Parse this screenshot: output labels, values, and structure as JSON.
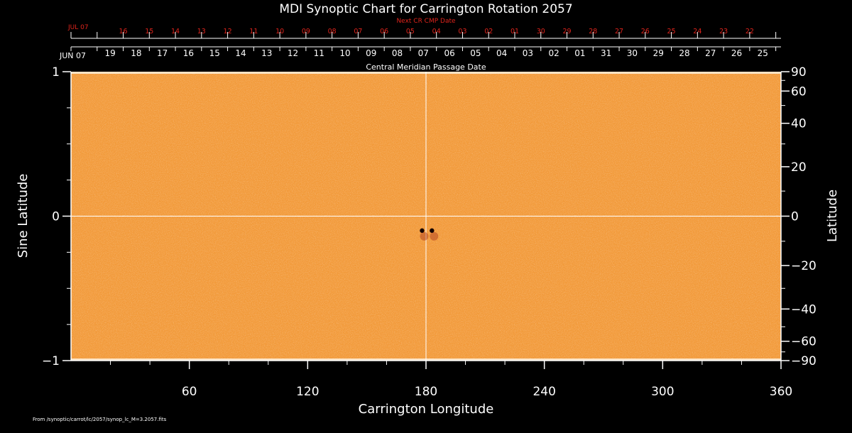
{
  "chart_data": {
    "type": "heatmap",
    "title": "MDI Synoptic Chart for Carrington Rotation 2057",
    "xlabel": "Carrington Longitude",
    "ylabel_left": "Sine Latitude",
    "ylabel_right": "Latitude",
    "xlim": [
      0,
      360
    ],
    "ylim": [
      -1,
      1
    ],
    "x_ticks": [
      60,
      120,
      180,
      240,
      300,
      360
    ],
    "y_ticks_left": [
      "1",
      "0",
      "−1"
    ],
    "y_ticks_right": [
      "90",
      "60",
      "40",
      "20",
      "0",
      "−20",
      "−40",
      "−60",
      "−90"
    ],
    "cmp_axis_label": "Central Meridian Passage Date",
    "cmp_month_label": "JUN 07",
    "cmp_dates": [
      "19",
      "18",
      "17",
      "16",
      "15",
      "14",
      "13",
      "12",
      "11",
      "10",
      "09",
      "08",
      "07",
      "06",
      "05",
      "04",
      "03",
      "02",
      "01",
      "31",
      "30",
      "29",
      "28",
      "27",
      "26",
      "25"
    ],
    "next_cr_label": "Next CR CMP Date",
    "next_cr_month_label": "JUL 07",
    "next_cr_dates": [
      "16",
      "15",
      "14",
      "13",
      "12",
      "11",
      "10",
      "09",
      "08",
      "07",
      "06",
      "05",
      "04",
      "03",
      "02",
      "01",
      "30",
      "29",
      "28",
      "27",
      "26",
      "25",
      "24",
      "23",
      "22"
    ],
    "sunspots": [
      {
        "longitude": 178,
        "sine_latitude": -0.1,
        "polarity": "negative"
      },
      {
        "longitude": 183,
        "sine_latitude": -0.1,
        "polarity": "negative"
      }
    ],
    "background_color": "#f29a3a",
    "footer": "From /synoptic/carrot/lc/2057/synop_lc_M=3.2057.fits"
  }
}
